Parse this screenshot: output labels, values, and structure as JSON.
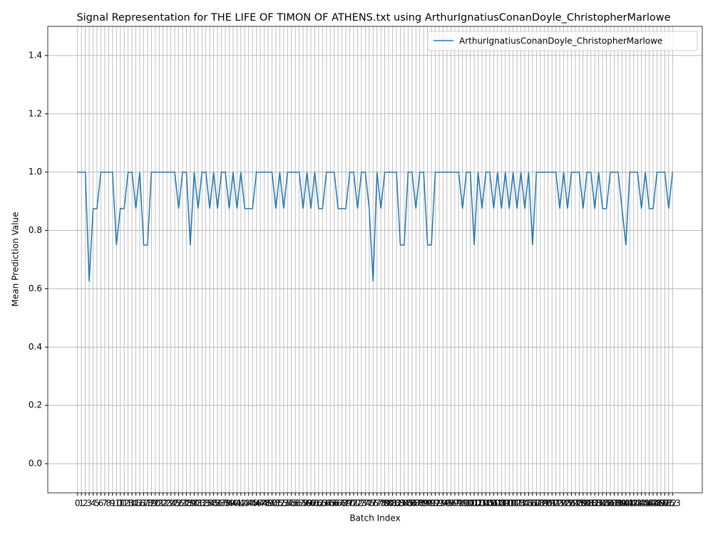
{
  "chart_data": {
    "type": "line",
    "title": "Signal Representation for THE LIFE OF TIMON OF ATHENS.txt using ArthurIgnatiusConanDoyle_ChristopherMarlowe",
    "xlabel": "Batch Index",
    "ylabel": "Mean Prediction Value",
    "x": [
      0,
      1,
      2,
      3,
      4,
      5,
      6,
      7,
      8,
      9,
      10,
      11,
      12,
      13,
      14,
      15,
      16,
      17,
      18,
      19,
      20,
      21,
      22,
      23,
      24,
      25,
      26,
      27,
      28,
      29,
      30,
      31,
      32,
      33,
      34,
      35,
      36,
      37,
      38,
      39,
      40,
      41,
      42,
      43,
      44,
      45,
      46,
      47,
      48,
      49,
      50,
      51,
      52,
      53,
      54,
      55,
      56,
      57,
      58,
      59,
      60,
      61,
      62,
      63,
      64,
      65,
      66,
      67,
      68,
      69,
      70,
      71,
      72,
      73,
      74,
      75,
      76,
      77,
      78,
      79,
      80,
      81,
      82,
      83,
      84,
      85,
      86,
      87,
      88,
      89,
      90,
      91,
      92,
      93,
      94,
      95,
      96,
      97,
      98,
      99,
      100,
      101,
      102,
      103,
      104,
      105,
      106,
      107,
      108,
      109,
      110,
      111,
      112,
      113,
      114,
      115,
      116,
      117,
      118,
      119,
      120,
      121,
      122,
      123,
      124,
      125,
      126,
      127,
      128,
      129,
      130,
      131,
      132,
      133,
      134,
      135,
      136,
      137,
      138,
      139,
      140,
      141,
      142,
      143,
      144,
      145,
      146,
      147,
      148,
      149,
      150,
      151,
      152,
      153
    ],
    "series": [
      {
        "name": "ArthurIgnatiusConanDoyle_ChristopherMarlowe",
        "color": "#1f77b4",
        "values": [
          1,
          1,
          1,
          0.625,
          0.875,
          0.875,
          1,
          1,
          1,
          1,
          0.75,
          0.875,
          0.875,
          1,
          1,
          0.875,
          1,
          0.75,
          0.75,
          1,
          1,
          1,
          1,
          1,
          1,
          1,
          0.875,
          1,
          1,
          0.75,
          1,
          0.875,
          1,
          1,
          0.875,
          1,
          0.875,
          1,
          1,
          0.875,
          1,
          0.875,
          1,
          0.875,
          0.875,
          0.875,
          1,
          1,
          1,
          1,
          1,
          0.875,
          1,
          0.875,
          1,
          1,
          1,
          1,
          0.875,
          1,
          0.875,
          1,
          0.875,
          0.875,
          1,
          1,
          1,
          0.875,
          0.875,
          0.875,
          1,
          1,
          0.875,
          1,
          1,
          0.875,
          0.625,
          1,
          0.875,
          1,
          1,
          1,
          1,
          0.75,
          0.75,
          1,
          1,
          0.875,
          1,
          1,
          0.75,
          0.75,
          1,
          1,
          1,
          1,
          1,
          1,
          1,
          0.875,
          1,
          1,
          0.75,
          1,
          0.875,
          1,
          1,
          0.875,
          1,
          0.875,
          1,
          0.875,
          1,
          0.875,
          1,
          0.875,
          1,
          0.75,
          1,
          1,
          1,
          1,
          1,
          1,
          0.875,
          1,
          0.875,
          1,
          1,
          1,
          0.875,
          1,
          1,
          0.875,
          1,
          0.875,
          0.875,
          1,
          1,
          1,
          0.875,
          0.75,
          1,
          1,
          1,
          0.875,
          1,
          0.875,
          0.875,
          1,
          1,
          1,
          0.875,
          1
        ]
      }
    ],
    "xlim": [
      -7.65,
      160.65
    ],
    "ylim": [
      -0.1,
      1.5
    ],
    "xticks": [
      0,
      1,
      2,
      3,
      4,
      5,
      6,
      7,
      8,
      9,
      10,
      11,
      12,
      13,
      14,
      15,
      16,
      17,
      18,
      19,
      20,
      21,
      22,
      23,
      24,
      25,
      26,
      27,
      28,
      29,
      30,
      31,
      32,
      33,
      34,
      35,
      36,
      37,
      38,
      39,
      40,
      41,
      42,
      43,
      44,
      45,
      46,
      47,
      48,
      49,
      50,
      51,
      52,
      53,
      54,
      55,
      56,
      57,
      58,
      59,
      60,
      61,
      62,
      63,
      64,
      65,
      66,
      67,
      68,
      69,
      70,
      71,
      72,
      73,
      74,
      75,
      76,
      77,
      78,
      79,
      80,
      81,
      82,
      83,
      84,
      85,
      86,
      87,
      88,
      89,
      90,
      91,
      92,
      93,
      94,
      95,
      96,
      97,
      98,
      99,
      100,
      101,
      102,
      103,
      104,
      105,
      106,
      107,
      108,
      109,
      110,
      111,
      112,
      113,
      114,
      115,
      116,
      117,
      118,
      119,
      120,
      121,
      122,
      123,
      124,
      125,
      126,
      127,
      128,
      129,
      130,
      131,
      132,
      133,
      134,
      135,
      136,
      137,
      138,
      139,
      140,
      141,
      142,
      143,
      144,
      145,
      146,
      147,
      148,
      149,
      150,
      151,
      152,
      153
    ],
    "yticks": [
      {
        "value": 0,
        "label": "0.0"
      },
      {
        "value": 0.2,
        "label": "0.2"
      },
      {
        "value": 0.4,
        "label": "0.4"
      },
      {
        "value": 0.6,
        "label": "0.6"
      },
      {
        "value": 0.8,
        "label": "0.8"
      },
      {
        "value": 1,
        "label": "1.0"
      },
      {
        "value": 1.2,
        "label": "1.2"
      },
      {
        "value": 1.4,
        "label": "1.4"
      }
    ],
    "grid": true,
    "legend": "upper right"
  }
}
